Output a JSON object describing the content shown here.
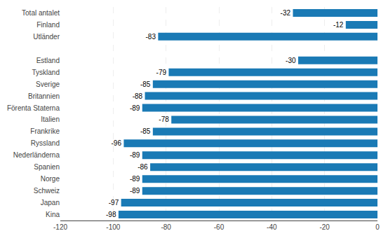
{
  "chart_data": {
    "type": "bar",
    "orientation": "horizontal",
    "categories": [
      "Total antalet",
      "Finland",
      "Utländer",
      null,
      "Estland",
      "Tyskland",
      "Sverige",
      "Britannien",
      "Förenta Staterna",
      "Italien",
      "Frankrike",
      "Ryssland",
      "Nederländerna",
      "Spanien",
      "Norge",
      "Schweiz",
      "Japan",
      "Kina"
    ],
    "values": [
      -32,
      -12,
      -83,
      null,
      -30,
      -79,
      -85,
      -88,
      -89,
      -78,
      -85,
      -96,
      -89,
      -86,
      -89,
      -89,
      -97,
      -98
    ],
    "color": "#1a7ab5",
    "xlim": [
      -120,
      0
    ],
    "xticks": [
      -120,
      -100,
      -80,
      -60,
      -40,
      -20,
      0
    ],
    "grid": true,
    "data_labels": true
  }
}
